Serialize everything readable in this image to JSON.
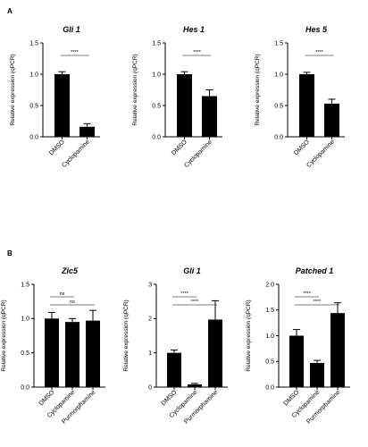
{
  "panels": [
    {
      "letter": "A"
    },
    {
      "letter": "B"
    }
  ],
  "chart_data": [
    {
      "type": "bar",
      "title": "Gli 1",
      "title_italic": true,
      "ylabel": "Relative expression (qPCR)",
      "categories": [
        "DMSO",
        "Cyclopamine"
      ],
      "values": [
        1.0,
        0.16
      ],
      "errors": [
        0.04,
        0.05
      ],
      "ylim": [
        0,
        1.5
      ],
      "yticks": [
        "0.0",
        "0.5",
        "1.0",
        "1.5"
      ],
      "significance": [
        {
          "from": 0,
          "to": 1,
          "label": "****"
        }
      ]
    },
    {
      "type": "bar",
      "title": "Hes 1",
      "title_italic": true,
      "ylabel": "Relative expression (qPCR)",
      "categories": [
        "DMSO",
        "Cyclopamine"
      ],
      "values": [
        1.0,
        0.65
      ],
      "errors": [
        0.04,
        0.1
      ],
      "ylim": [
        0,
        1.5
      ],
      "yticks": [
        "0.0",
        "0.5",
        "1.0",
        "1.5"
      ],
      "significance": [
        {
          "from": 0,
          "to": 1,
          "label": "****"
        }
      ]
    },
    {
      "type": "bar",
      "title": "Hes 5",
      "title_italic": true,
      "ylabel": "Relative expression (qPCR)",
      "categories": [
        "DMSO",
        "Cyclopamine"
      ],
      "values": [
        1.0,
        0.53
      ],
      "errors": [
        0.03,
        0.07
      ],
      "ylim": [
        0,
        1.5
      ],
      "yticks": [
        "0.0",
        "0.5",
        "1.0",
        "1.5"
      ],
      "significance": [
        {
          "from": 0,
          "to": 1,
          "label": "****"
        }
      ]
    },
    {
      "type": "bar",
      "title": "Zic5",
      "title_italic": true,
      "ylabel": "Relative expression (qPCR)",
      "categories": [
        "DMSO",
        "Cyclopamine",
        "Purmorphamine"
      ],
      "values": [
        1.0,
        0.95,
        0.97
      ],
      "errors": [
        0.09,
        0.05,
        0.15
      ],
      "ylim": [
        0,
        1.5
      ],
      "yticks": [
        "0.0",
        "0.5",
        "1.0",
        "1.5"
      ],
      "significance": [
        {
          "from": 0,
          "to": 1,
          "label": "ns"
        },
        {
          "from": 0,
          "to": 2,
          "label": "ns"
        }
      ]
    },
    {
      "type": "bar",
      "title": "Gli 1",
      "title_italic": true,
      "ylabel": "Relative expression (qPCR)",
      "categories": [
        "DMSO",
        "Cyclopamine",
        "Purmorphamine"
      ],
      "values": [
        1.0,
        0.08,
        1.97
      ],
      "errors": [
        0.08,
        0.03,
        0.55
      ],
      "ylim": [
        0,
        3
      ],
      "yticks": [
        "0",
        "1",
        "2",
        "3"
      ],
      "significance": [
        {
          "from": 0,
          "to": 1,
          "label": "****"
        },
        {
          "from": 0,
          "to": 2,
          "label": "****"
        }
      ]
    },
    {
      "type": "bar",
      "title": "Patched 1",
      "title_italic": true,
      "ylabel": "Relative expression (qPCR)",
      "categories": [
        "DMSO",
        "Cyclopamine",
        "Purmorphamine"
      ],
      "values": [
        1.0,
        0.47,
        1.44
      ],
      "errors": [
        0.12,
        0.05,
        0.2
      ],
      "ylim": [
        0,
        2.0
      ],
      "yticks": [
        "0.0",
        "0.5",
        "1.0",
        "1.5",
        "2.0"
      ],
      "significance": [
        {
          "from": 0,
          "to": 1,
          "label": "****"
        },
        {
          "from": 0,
          "to": 2,
          "label": "****"
        }
      ]
    }
  ]
}
